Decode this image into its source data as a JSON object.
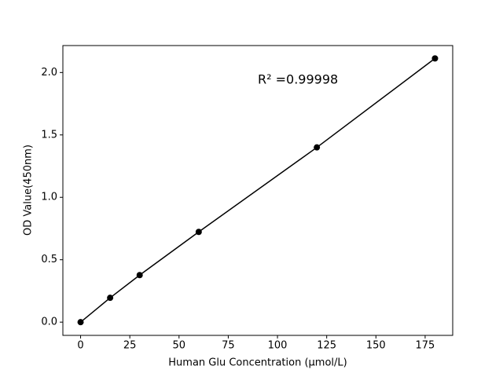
{
  "chart_data": {
    "type": "line",
    "x": [
      0,
      15,
      30,
      60,
      120,
      180
    ],
    "values": [
      0,
      0.195,
      0.377,
      0.723,
      1.4,
      2.113
    ],
    "color": "#000000",
    "xlim": [
      -9,
      189
    ],
    "xticks": [
      0,
      25,
      50,
      75,
      100,
      125,
      150,
      175
    ],
    "ylim": [
      -0.106,
      2.216
    ],
    "yticks": [
      {
        "value": 0,
        "label": "0.0"
      },
      0.5,
      {
        "value": 1,
        "label": "1.0"
      },
      1.5,
      {
        "value": 2,
        "label": "2.0"
      }
    ],
    "xlabel": "Human Glu Concentration (μmol/L)",
    "ylabel": "OD Value(450nm)",
    "annotation": "R² =0.99998"
  }
}
